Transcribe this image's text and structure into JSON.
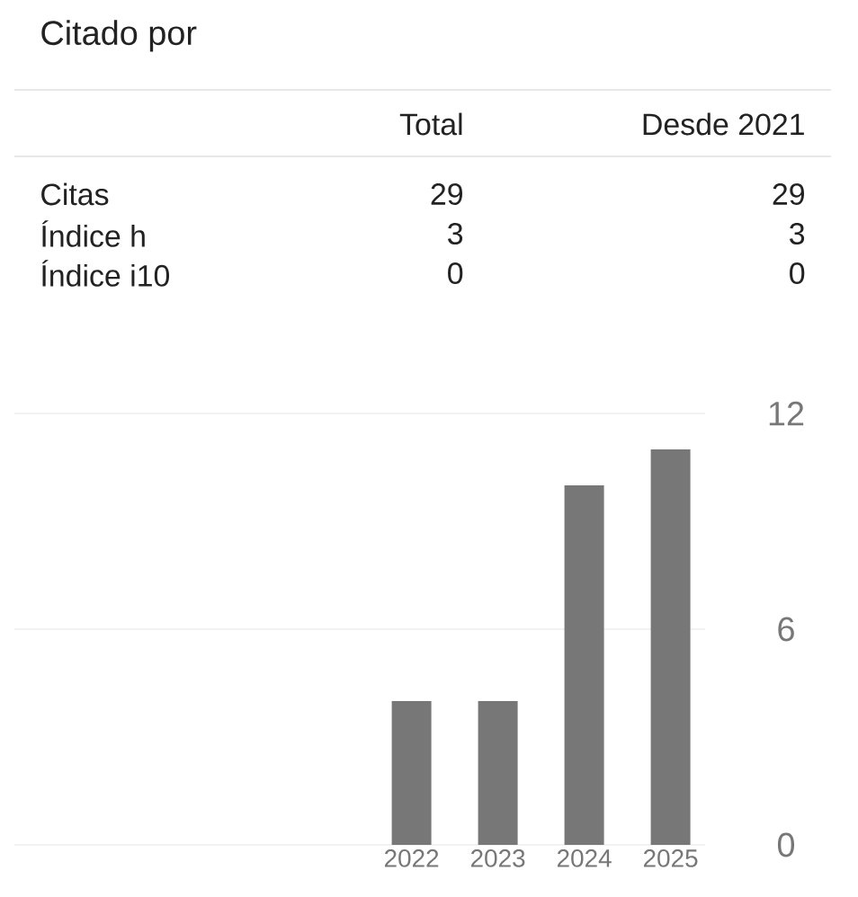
{
  "chart_data": [
    {
      "type": "other",
      "title": "Citado por",
      "categories": [
        "Citas",
        "Índice h",
        "Índice i10"
      ],
      "series": [
        {
          "name": "Total",
          "values": [
            29,
            3,
            0
          ]
        },
        {
          "name": "Desde 2021",
          "values": [
            29,
            3,
            0
          ]
        }
      ],
      "data_labels": true
    },
    {
      "type": "bar",
      "categories": [
        "2022",
        "2023",
        "2024",
        "2025"
      ],
      "values": [
        4,
        4,
        10,
        11
      ],
      "color": "#777777",
      "ylim": [
        0,
        12
      ],
      "yticks": [
        0,
        6,
        12
      ],
      "grid": "y"
    }
  ]
}
